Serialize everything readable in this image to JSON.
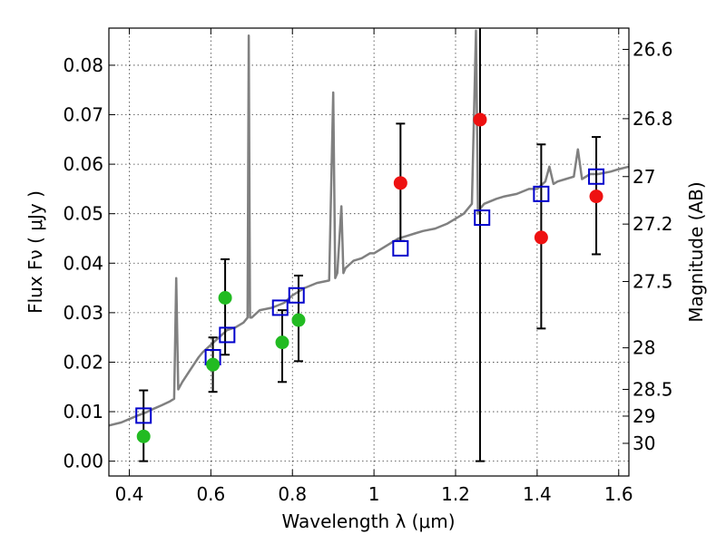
{
  "chart_data": {
    "type": "scatter",
    "title": "",
    "xlabel": "Wavelength  λ (μm)",
    "ylabel": "Flux  Fν  ( μJy )",
    "y2label": "Magnitude (AB)",
    "xlim": [
      0.35,
      1.625
    ],
    "ylim": [
      -0.003,
      0.0875
    ],
    "grid": true,
    "x_ticks": [
      0.4,
      0.6,
      0.8,
      1.0,
      1.2,
      1.4,
      1.6
    ],
    "x_tick_labels": [
      "0.4",
      "0.6",
      "0.8",
      "1",
      "1.2",
      "1.4",
      "1.6"
    ],
    "y_ticks": [
      0.0,
      0.01,
      0.02,
      0.03,
      0.04,
      0.05,
      0.06,
      0.07,
      0.08
    ],
    "y_tick_labels": [
      "0.00",
      "0.01",
      "0.02",
      "0.03",
      "0.04",
      "0.05",
      "0.06",
      "0.07",
      "0.08"
    ],
    "y2_ticks": [
      {
        "label": "26.6",
        "flux": 0.0832
      },
      {
        "label": "26.8",
        "flux": 0.0692
      },
      {
        "label": "27",
        "flux": 0.0575
      },
      {
        "label": "27.2",
        "flux": 0.0479
      },
      {
        "label": "27.5",
        "flux": 0.0363
      },
      {
        "label": "28",
        "flux": 0.0229
      },
      {
        "label": "28.5",
        "flux": 0.0145
      },
      {
        "label": "29",
        "flux": 0.0091
      },
      {
        "label": "30",
        "flux": 0.0036
      }
    ],
    "series": [
      {
        "kind": "line",
        "color": "#808080",
        "x": [
          0.35,
          0.38,
          0.4,
          0.42,
          0.44,
          0.46,
          0.48,
          0.5,
          0.51,
          0.515,
          0.52,
          0.53,
          0.55,
          0.57,
          0.58,
          0.6,
          0.62,
          0.64,
          0.66,
          0.68,
          0.69,
          0.693,
          0.696,
          0.7,
          0.72,
          0.75,
          0.78,
          0.8,
          0.83,
          0.86,
          0.89,
          0.9,
          0.905,
          0.91,
          0.92,
          0.925,
          0.93,
          0.95,
          0.97,
          0.99,
          1.0,
          1.02,
          1.04,
          1.06,
          1.08,
          1.1,
          1.12,
          1.15,
          1.18,
          1.2,
          1.22,
          1.24,
          1.25,
          1.255,
          1.26,
          1.27,
          1.3,
          1.32,
          1.35,
          1.38,
          1.4,
          1.42,
          1.43,
          1.44,
          1.45,
          1.47,
          1.49,
          1.5,
          1.51,
          1.53,
          1.55,
          1.58,
          1.6,
          1.625
        ],
        "y": [
          0.0072,
          0.0078,
          0.0085,
          0.0092,
          0.0098,
          0.0106,
          0.0113,
          0.0121,
          0.0126,
          0.037,
          0.0145,
          0.016,
          0.0185,
          0.021,
          0.022,
          0.0235,
          0.025,
          0.0265,
          0.027,
          0.028,
          0.029,
          0.086,
          0.029,
          0.029,
          0.0305,
          0.031,
          0.032,
          0.0335,
          0.035,
          0.036,
          0.0365,
          0.0745,
          0.037,
          0.038,
          0.0515,
          0.038,
          0.039,
          0.0405,
          0.041,
          0.042,
          0.042,
          0.043,
          0.044,
          0.045,
          0.0455,
          0.046,
          0.0465,
          0.047,
          0.048,
          0.049,
          0.05,
          0.052,
          0.087,
          0.05,
          0.051,
          0.052,
          0.053,
          0.0535,
          0.054,
          0.055,
          0.055,
          0.0565,
          0.0595,
          0.056,
          0.0565,
          0.057,
          0.0575,
          0.063,
          0.057,
          0.058,
          0.058,
          0.0585,
          0.059,
          0.0595
        ]
      },
      {
        "kind": "open-square",
        "color": "#0000cc",
        "x": [
          0.435,
          0.605,
          0.64,
          0.77,
          0.81,
          1.065,
          1.265,
          1.41,
          1.545
        ],
        "y": [
          0.0092,
          0.021,
          0.0255,
          0.031,
          0.0335,
          0.043,
          0.0492,
          0.054,
          0.0575
        ]
      },
      {
        "kind": "filled-circle",
        "color": "#22bb22",
        "x": [
          0.435,
          0.605,
          0.635,
          0.775,
          0.815
        ],
        "y": [
          0.005,
          0.0195,
          0.033,
          0.024,
          0.0285
        ],
        "err_low": [
          0.0,
          0.014,
          0.0215,
          0.016,
          0.0202
        ],
        "err_high": [
          0.0143,
          0.025,
          0.0408,
          0.0305,
          0.0375
        ]
      },
      {
        "kind": "filled-circle",
        "color": "#ee1111",
        "x": [
          1.065,
          1.26,
          1.41,
          1.545
        ],
        "y": [
          0.0562,
          0.069,
          0.0452,
          0.0535
        ],
        "err_low": [
          0.0445,
          0.0,
          0.0268,
          0.0418
        ],
        "err_high": [
          0.0682,
          0.0875,
          0.064,
          0.0655
        ]
      }
    ]
  }
}
